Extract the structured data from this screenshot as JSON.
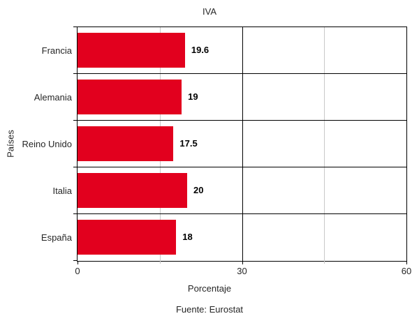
{
  "chart_data": {
    "type": "bar",
    "orientation": "horizontal",
    "title": "IVA",
    "categories": [
      "Francia",
      "Alemania",
      "Reino Unido",
      "Italia",
      "España"
    ],
    "values": [
      19.6,
      19,
      17.5,
      20,
      18
    ],
    "value_labels": [
      "19.6",
      "19",
      "17.5",
      "20",
      "18"
    ],
    "xlabel": "Porcentaje",
    "ylabel": "Países",
    "source": "Fuente: Eurostat",
    "xlim": [
      0,
      60
    ],
    "x_major_ticks": [
      0,
      30,
      60
    ],
    "x_minor_ticks": [
      15,
      45
    ],
    "grid": true,
    "legend": false,
    "bar_color": "#E2001E",
    "major_grid_color": "#000000",
    "minor_grid_color": "#C8C8C8",
    "frame_color": "#000000",
    "background_color": "#FFFFFF"
  }
}
